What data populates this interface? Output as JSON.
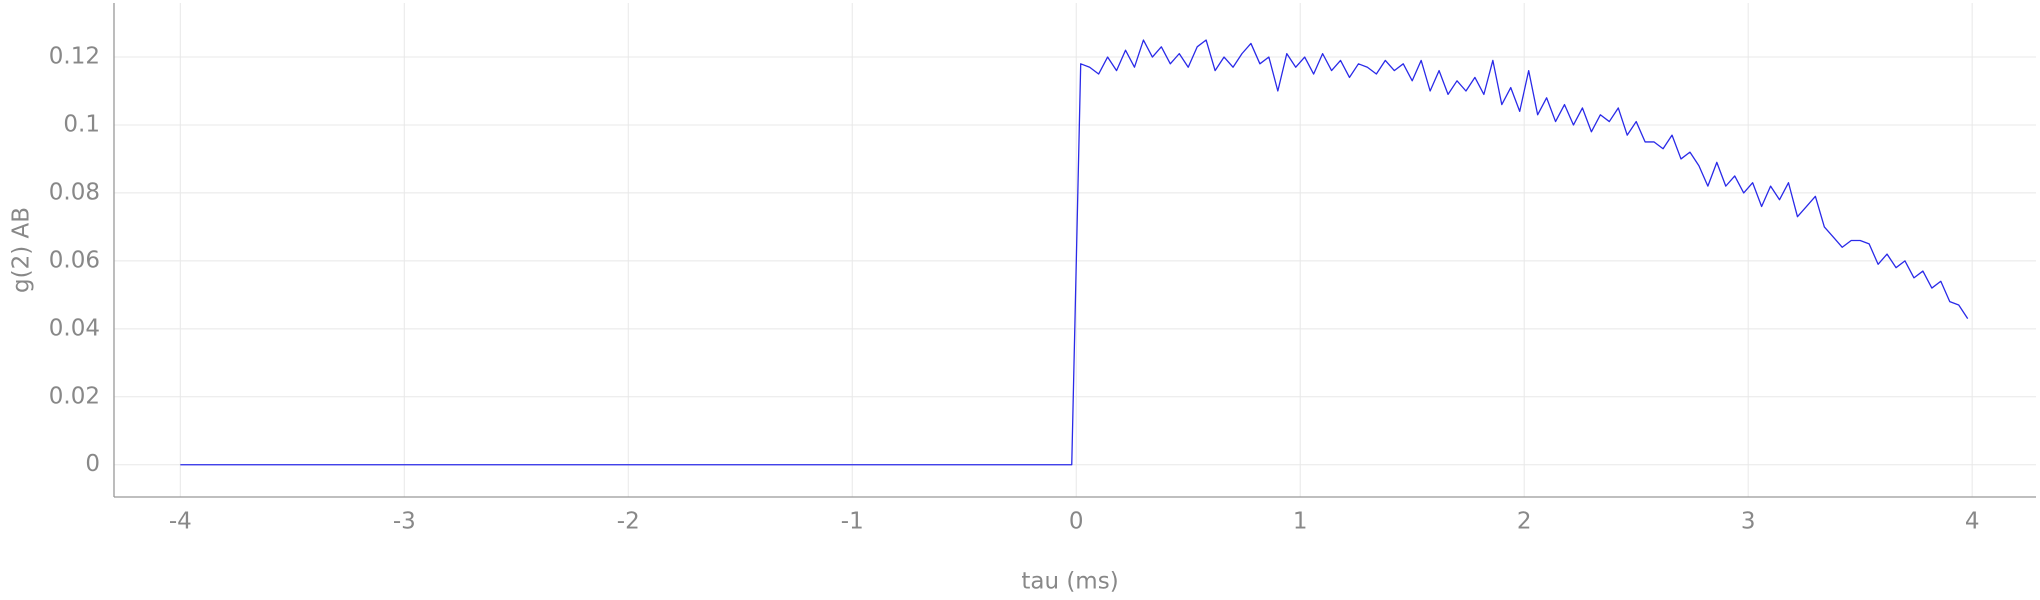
{
  "chart_data": {
    "type": "line",
    "xlabel": "tau (ms)",
    "ylabel": "g(2) AB",
    "xlim": [
      -4.296,
      4.285
    ],
    "ylim": [
      -0.0095,
      0.1359
    ],
    "xticks": [
      -4,
      -3,
      -2,
      -1,
      0,
      1,
      2,
      3,
      4
    ],
    "yticks": [
      0,
      0.02,
      0.04,
      0.06,
      0.08,
      0.1,
      0.12
    ],
    "grid": true,
    "x": [
      -4,
      -0.02,
      0.02,
      0.06,
      0.1,
      0.14,
      0.18,
      0.22,
      0.26,
      0.3,
      0.34,
      0.38,
      0.42,
      0.46,
      0.5,
      0.54,
      0.58,
      0.62,
      0.66,
      0.7,
      0.74,
      0.78,
      0.82,
      0.86,
      0.9,
      0.94,
      0.98,
      1.02,
      1.06,
      1.1,
      1.14,
      1.18,
      1.22,
      1.26,
      1.3,
      1.34,
      1.38,
      1.42,
      1.46,
      1.5,
      1.54,
      1.58,
      1.62,
      1.66,
      1.7,
      1.74,
      1.78,
      1.82,
      1.86,
      1.9,
      1.94,
      1.98,
      2.02,
      2.06,
      2.1,
      2.14,
      2.18,
      2.22,
      2.26,
      2.3,
      2.34,
      2.38,
      2.42,
      2.46,
      2.5,
      2.54,
      2.58,
      2.62,
      2.66,
      2.7,
      2.74,
      2.78,
      2.82,
      2.86,
      2.9,
      2.94,
      2.98,
      3.02,
      3.06,
      3.1,
      3.14,
      3.18,
      3.22,
      3.26,
      3.3,
      3.34,
      3.38,
      3.42,
      3.46,
      3.5,
      3.54,
      3.58,
      3.62,
      3.66,
      3.7,
      3.74,
      3.78,
      3.82,
      3.86,
      3.9,
      3.94,
      3.98
    ],
    "series": [
      {
        "color": "#2a2ae8",
        "values": [
          0,
          0,
          0.118,
          0.117,
          0.115,
          0.12,
          0.116,
          0.122,
          0.117,
          0.125,
          0.12,
          0.123,
          0.118,
          0.121,
          0.117,
          0.123,
          0.125,
          0.116,
          0.12,
          0.117,
          0.121,
          0.124,
          0.118,
          0.12,
          0.11,
          0.121,
          0.117,
          0.12,
          0.115,
          0.121,
          0.116,
          0.119,
          0.114,
          0.118,
          0.117,
          0.115,
          0.119,
          0.116,
          0.118,
          0.113,
          0.119,
          0.11,
          0.116,
          0.109,
          0.113,
          0.11,
          0.114,
          0.109,
          0.119,
          0.106,
          0.111,
          0.104,
          0.116,
          0.103,
          0.108,
          0.101,
          0.106,
          0.1,
          0.105,
          0.098,
          0.103,
          0.101,
          0.105,
          0.097,
          0.101,
          0.095,
          0.095,
          0.093,
          0.097,
          0.09,
          0.092,
          0.088,
          0.082,
          0.089,
          0.082,
          0.085,
          0.08,
          0.083,
          0.076,
          0.082,
          0.078,
          0.083,
          0.073,
          0.076,
          0.079,
          0.07,
          0.067,
          0.064,
          0.066,
          0.066,
          0.065,
          0.059,
          0.062,
          0.058,
          0.06,
          0.055,
          0.057,
          0.052,
          0.054,
          0.048,
          0.047,
          0.043
        ]
      }
    ]
  }
}
